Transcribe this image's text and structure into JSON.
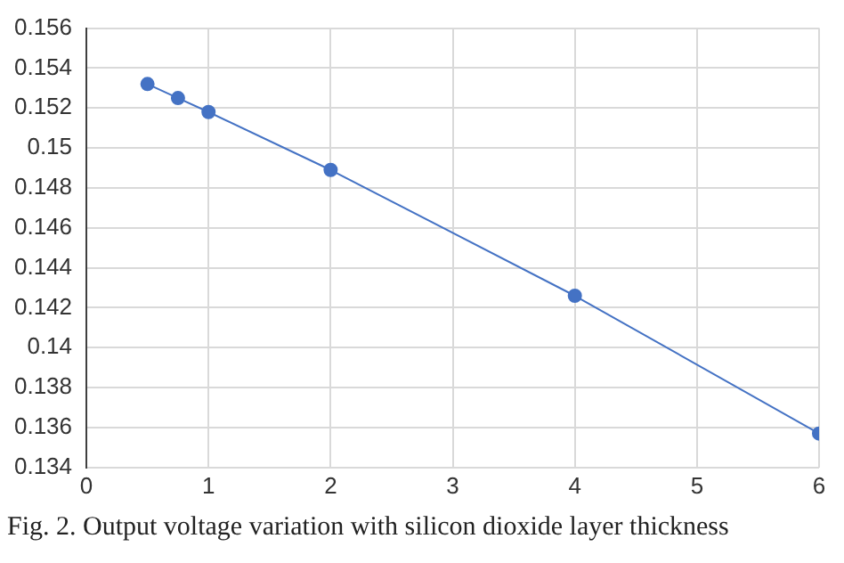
{
  "chart_data": {
    "type": "line",
    "x": [
      0.5,
      0.75,
      1,
      2,
      4,
      6
    ],
    "series": [
      {
        "color": "#4472c4",
        "values": [
          0.1532,
          0.1525,
          0.1518,
          0.1489,
          0.1426,
          0.1357
        ]
      }
    ],
    "xlim": [
      0,
      6
    ],
    "xticks": [
      0,
      1,
      2,
      3,
      4,
      5,
      6
    ],
    "ylim": [
      0.134,
      0.156
    ],
    "yticks": [
      0.134,
      0.136,
      0.138,
      0.14,
      0.142,
      0.144,
      0.146,
      0.148,
      0.15,
      0.152,
      0.154,
      0.156
    ],
    "grid": true,
    "marker": "circle",
    "line_style": "solid",
    "annotations": [
      "Fig. 2. Output voltage variation with silicon dioxide layer thickness"
    ]
  }
}
